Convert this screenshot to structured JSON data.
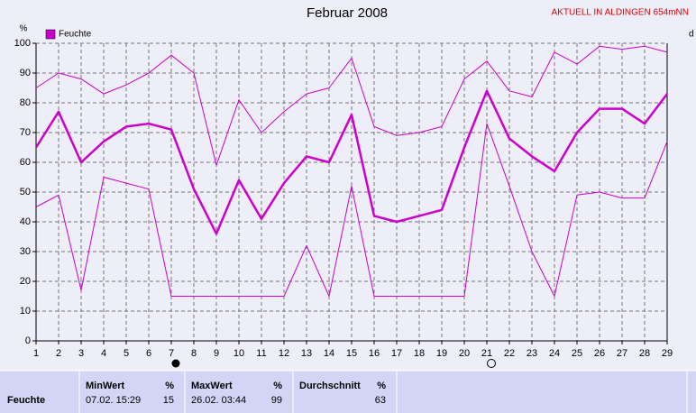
{
  "chart_data": {
    "type": "line",
    "title": "Februar 2008",
    "subtitle": "AKTUELL IN ALDINGEN 654mNN",
    "y_label": "%",
    "y2_label": "d",
    "x": [
      1,
      2,
      3,
      4,
      5,
      6,
      7,
      8,
      9,
      10,
      11,
      12,
      13,
      14,
      15,
      16,
      17,
      18,
      19,
      20,
      21,
      22,
      23,
      24,
      25,
      26,
      27,
      28,
      29
    ],
    "xlim": [
      1,
      29
    ],
    "xticks": [
      1,
      2,
      3,
      4,
      5,
      6,
      7,
      8,
      9,
      10,
      11,
      12,
      13,
      14,
      15,
      16,
      17,
      18,
      19,
      20,
      21,
      22,
      23,
      24,
      25,
      26,
      27,
      28,
      29
    ],
    "ylim": [
      0,
      100
    ],
    "yticks": [
      0,
      10,
      20,
      30,
      40,
      50,
      60,
      70,
      80,
      90,
      100
    ],
    "grid": true,
    "series": [
      {
        "name": "Feuchte",
        "color": "#cc00cc",
        "width": 2.5,
        "values": [
          65,
          77,
          60,
          67,
          72,
          73,
          71,
          51,
          36,
          54,
          41,
          53,
          62,
          60,
          76,
          42,
          40,
          42,
          44,
          65,
          84,
          68,
          62,
          57,
          70,
          78,
          78,
          73,
          83
        ]
      },
      {
        "color": "#cc00cc",
        "width": 1,
        "values": [
          85,
          90,
          88,
          83,
          86,
          90,
          96,
          90,
          59,
          81,
          70,
          77,
          83,
          85,
          95,
          72,
          69,
          70,
          72,
          88,
          94,
          84,
          82,
          97,
          93,
          99,
          98,
          99,
          97
        ]
      },
      {
        "color": "#cc00cc",
        "width": 1,
        "values": [
          45,
          49,
          17,
          55,
          53,
          51,
          15,
          15,
          15,
          15,
          15,
          15,
          32,
          15,
          52,
          15,
          15,
          15,
          15,
          15,
          73,
          52,
          30,
          15,
          49,
          50,
          48,
          48,
          67
        ]
      }
    ]
  },
  "stats": {
    "row_label": "Feuchte",
    "columns": [
      {
        "header": "MinWert",
        "unit": "%",
        "time": "07.02. 15:29",
        "value": 15
      },
      {
        "header": "MaxWert",
        "unit": "%",
        "time": "26.02. 03:44",
        "value": 99
      },
      {
        "header": "Durchschnitt",
        "unit": "%",
        "value": 63
      }
    ]
  }
}
